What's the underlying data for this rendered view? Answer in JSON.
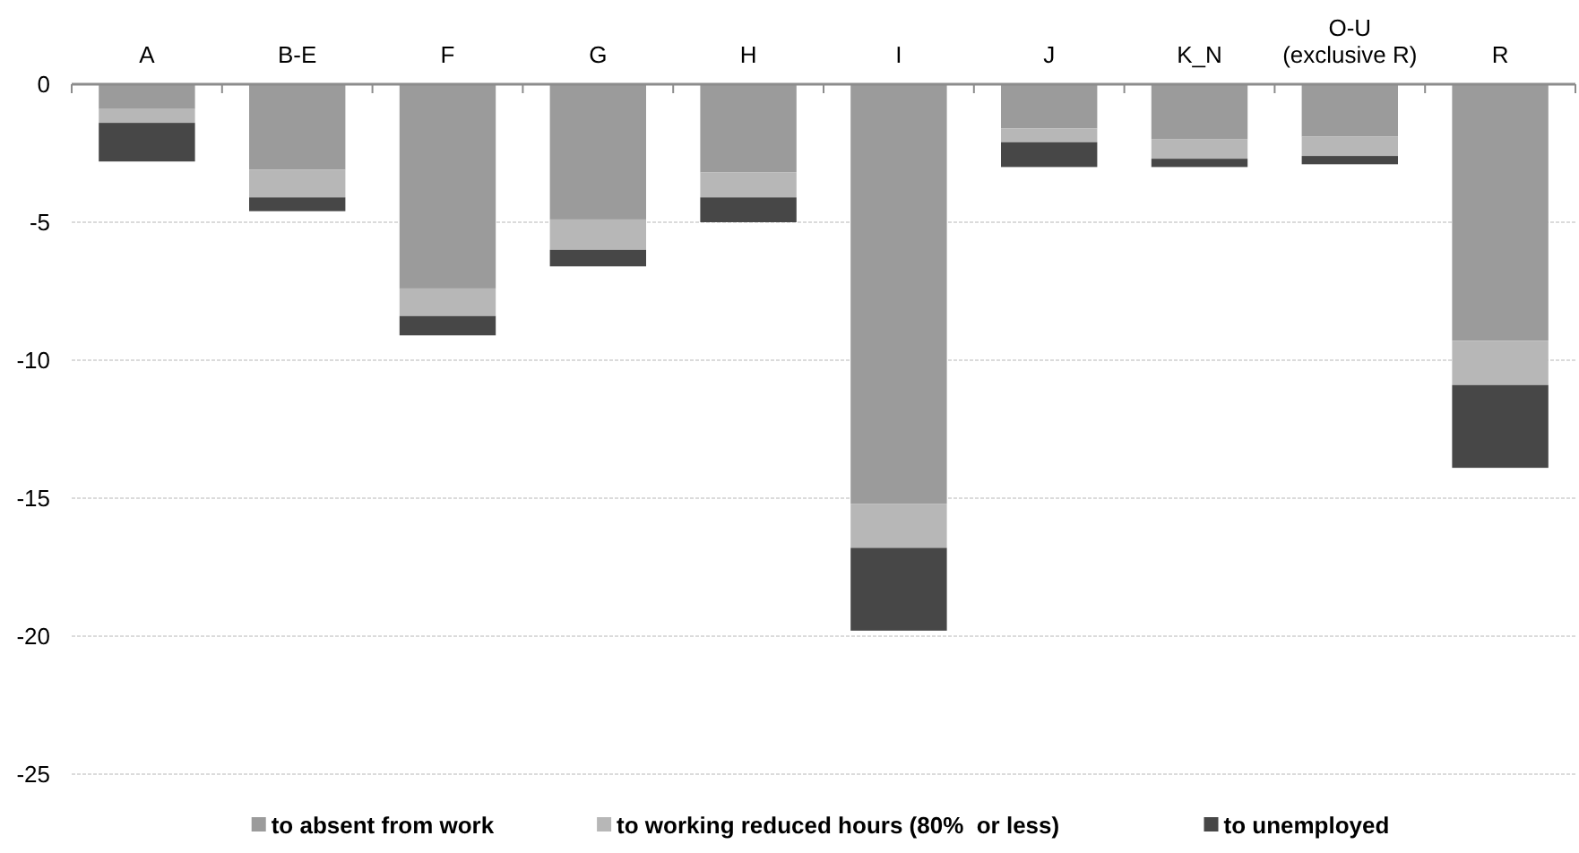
{
  "chart_data": {
    "type": "bar",
    "stacked": true,
    "categories": [
      "A",
      "B-E",
      "F",
      "G",
      "H",
      "I",
      "J",
      "K_N",
      "O-U\n(exclusive R)",
      "R"
    ],
    "series": [
      {
        "name": "to absent from work",
        "color": "#9b9b9b",
        "values": [
          -0.9,
          -3.1,
          -7.4,
          -4.9,
          -3.2,
          -15.2,
          -1.6,
          -2.0,
          -1.9,
          -9.3
        ]
      },
      {
        "name": "to working reduced hours (80%  or less)",
        "color": "#b7b7b7",
        "values": [
          -0.5,
          -1.0,
          -1.0,
          -1.1,
          -0.9,
          -1.6,
          -0.5,
          -0.7,
          -0.7,
          -1.6
        ]
      },
      {
        "name": "to unemployed",
        "color": "#474747",
        "values": [
          -1.4,
          -0.5,
          -0.7,
          -0.6,
          -0.9,
          -3.0,
          -0.9,
          -0.3,
          -0.3,
          -3.0
        ]
      }
    ],
    "ylim": [
      -25,
      0
    ],
    "yticks": [
      -25,
      -20,
      -15,
      -10,
      -5,
      0
    ],
    "grid": "y",
    "legend": "bottom"
  }
}
